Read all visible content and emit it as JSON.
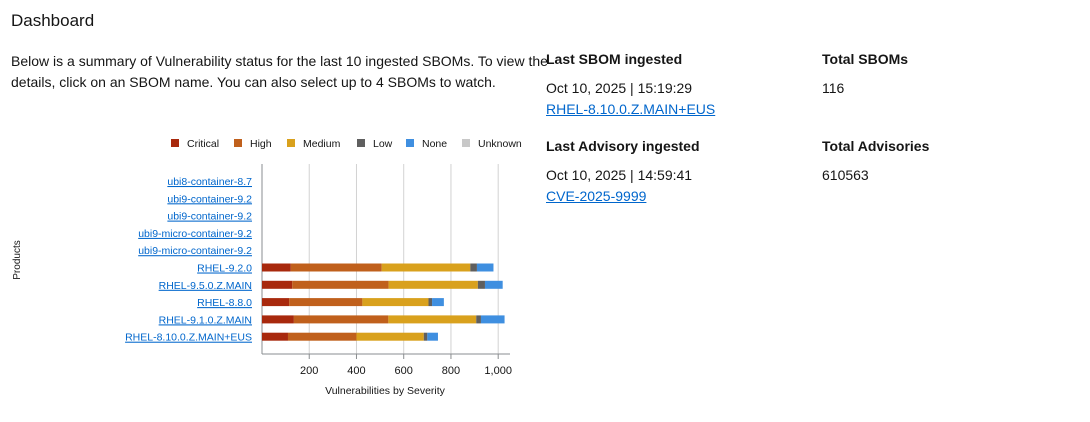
{
  "page": {
    "title": "Dashboard"
  },
  "summary": {
    "text": "Below is a summary of Vulnerability status for the last 10 ingested SBOMs. To view the details, click on an SBOM name. You can also select up to 4 SBOMs to watch."
  },
  "stats": {
    "last_sbom": {
      "label": "Last SBOM ingested",
      "date": "Oct 10, 2025 | 15:19:29",
      "link": "RHEL-8.10.0.Z.MAIN+EUS"
    },
    "total_sboms": {
      "label": "Total SBOMs",
      "value": "116"
    },
    "last_advisory": {
      "label": "Last Advisory ingested",
      "date": "Oct 10, 2025 | 14:59:41",
      "link": "CVE-2025-9999"
    },
    "total_advisories": {
      "label": "Total Advisories",
      "value": "610563"
    }
  },
  "chart_data": {
    "type": "bar",
    "orientation": "horizontal",
    "stacked": true,
    "ylabel": "Products",
    "xlabel": "Vulnerabilities by Severity",
    "xlim": [
      0,
      1050
    ],
    "xticks": [
      200,
      400,
      600,
      800,
      1000
    ],
    "xtick_labels": [
      "200",
      "400",
      "600",
      "800",
      "1,000"
    ],
    "grid": true,
    "legend_position": "top",
    "categories": [
      "ubi8-container-8.7",
      "ubi9-container-9.2",
      "ubi9-container-9.2",
      "ubi9-micro-container-9.2",
      "ubi9-micro-container-9.2",
      "RHEL-9.2.0",
      "RHEL-9.5.0.Z.MAIN",
      "RHEL-8.8.0",
      "RHEL-9.1.0.Z.MAIN",
      "RHEL-8.10.0.Z.MAIN+EUS"
    ],
    "series": [
      {
        "name": "Critical",
        "color": "#a8290d",
        "values": [
          0,
          0,
          0,
          0,
          0,
          122,
          128,
          115,
          135,
          110
        ]
      },
      {
        "name": "High",
        "color": "#c0601c",
        "values": [
          0,
          0,
          0,
          0,
          0,
          385,
          408,
          310,
          400,
          290
        ]
      },
      {
        "name": "Medium",
        "color": "#d9a11d",
        "values": [
          0,
          0,
          0,
          0,
          0,
          375,
          378,
          280,
          372,
          285
        ]
      },
      {
        "name": "Low",
        "color": "#5f5f5f",
        "values": [
          0,
          0,
          0,
          0,
          0,
          28,
          30,
          15,
          20,
          15
        ]
      },
      {
        "name": "None",
        "color": "#3f8fe0",
        "values": [
          0,
          0,
          0,
          0,
          0,
          70,
          75,
          50,
          100,
          45
        ]
      },
      {
        "name": "Unknown",
        "color": "#c8c8c8",
        "values": [
          0,
          0,
          0,
          0,
          0,
          0,
          0,
          0,
          0,
          0
        ]
      }
    ]
  }
}
